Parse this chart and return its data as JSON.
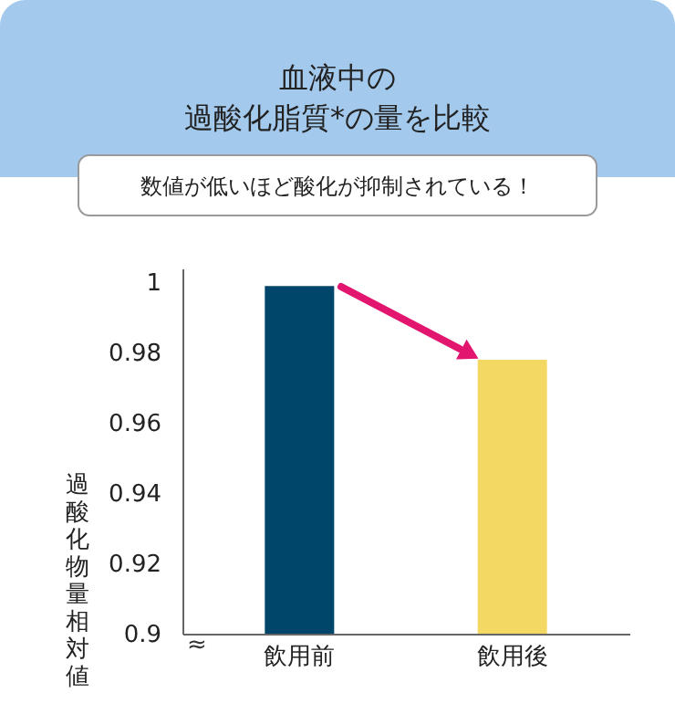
{
  "chart_data": {
    "type": "bar",
    "title": "血液中の",
    "subtitle": "過酸化脂質*の量を比較",
    "ylabel": "過酸化物量相対値",
    "categories": [
      "飲用前",
      "飲用後"
    ],
    "values": [
      0.999,
      0.978
    ],
    "colors": [
      "#00466b",
      "#f4d864"
    ],
    "ylim": [
      0.9,
      1.004
    ],
    "yticks": [
      0.9,
      0.92,
      0.94,
      0.96,
      0.98,
      1
    ],
    "grid": false,
    "annotations": [
      "数値が低いほど酸化が抑制されている！",
      "≈"
    ]
  }
}
